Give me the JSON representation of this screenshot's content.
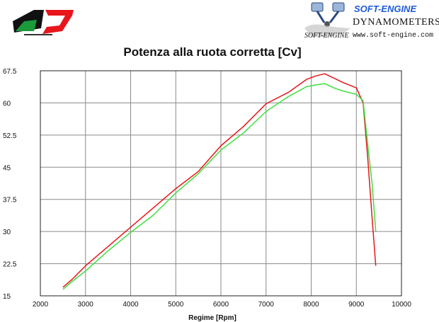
{
  "header": {
    "brand_name": "SOFT-ENGINE",
    "brand_tagline": "DYNAMOMETERS",
    "brand_script": "SOFT-ENGINE",
    "brand_url": "www.soft-engine.com",
    "left_logo": "QD exhaust logo",
    "right_logo": "piston-icon"
  },
  "chart_data": {
    "type": "line",
    "title": "Potenza alla ruota corretta [Cv]",
    "xlabel": "Regime [Rpm]",
    "ylabel": "",
    "xlim": [
      2000,
      10000
    ],
    "ylim": [
      15,
      67.5
    ],
    "xticks": [
      2000,
      3000,
      4000,
      5000,
      6000,
      7000,
      8000,
      9000,
      10000
    ],
    "yticks": [
      15,
      22.5,
      30,
      37.5,
      45,
      52.5,
      60,
      67.5
    ],
    "ytick_labels": [
      "15",
      "22.5",
      "30",
      "37.5",
      "45",
      "52.5",
      "60",
      "67.5"
    ],
    "grid": true,
    "series": [
      {
        "color": "#e8151b",
        "x": [
          2500,
          2700,
          3000,
          3500,
          4000,
          4500,
          5000,
          5500,
          6000,
          6500,
          7000,
          7500,
          7900,
          8100,
          8300,
          8500,
          8700,
          9000,
          9150,
          9250,
          9350,
          9430
        ],
        "y": [
          17.0,
          18.8,
          22.0,
          26.5,
          31.0,
          35.5,
          40.0,
          44.0,
          50.0,
          54.5,
          59.8,
          62.5,
          65.5,
          66.3,
          66.8,
          65.8,
          64.8,
          63.5,
          60.0,
          47.5,
          33.0,
          22.0
        ]
      },
      {
        "color": "#3ee03e",
        "x": [
          2500,
          2700,
          3000,
          3500,
          4000,
          4500,
          5000,
          5500,
          6000,
          6500,
          7000,
          7500,
          7900,
          8100,
          8300,
          8500,
          8700,
          9000,
          9150,
          9250,
          9350,
          9430
        ],
        "y": [
          16.5,
          18.3,
          20.8,
          25.5,
          29.8,
          33.8,
          39.0,
          43.5,
          49.0,
          53.0,
          58.0,
          61.5,
          63.8,
          64.2,
          64.5,
          63.5,
          62.8,
          62.0,
          60.5,
          50.5,
          41.0,
          30.0
        ]
      }
    ]
  }
}
